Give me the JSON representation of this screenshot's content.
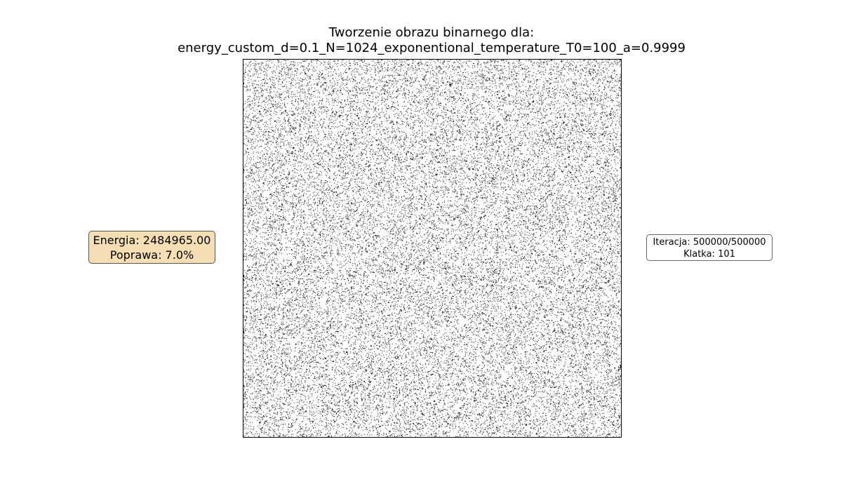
{
  "chart_data": {
    "type": "heatmap",
    "title_line1": "Tworzenie obrazu binarnego dla:",
    "title_line2": "energy_custom_d=0.1_N=1024_exponentional_temperature_T0=100_a=0.9999",
    "xlabel": "",
    "ylabel": "",
    "grid": false,
    "axis_ticks": false,
    "colormap": [
      "#ffffff",
      "#000000"
    ],
    "black_pixel_density": 0.1,
    "energy_label": "Energia: 2484965.00",
    "improvement_label": "Poprawa: 7.0%",
    "iteration_label": "Iteracja: 500000/500000",
    "frame_label": "Klatka: 101"
  },
  "colors": {
    "energy_box_background": "#f5deb3",
    "energy_box_border": "#555555",
    "iteration_box_border": "#666666",
    "pixel_on": "#000000",
    "pixel_off": "#ffffff"
  }
}
